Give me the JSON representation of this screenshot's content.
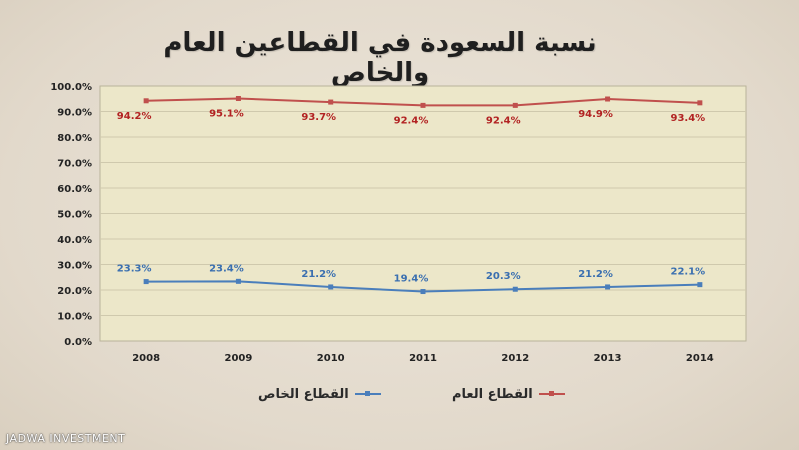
{
  "chart_data": {
    "type": "line",
    "title": "نسبة السعودة في القطاعين العام والخاص",
    "categories": [
      "2008",
      "2009",
      "2010",
      "2011",
      "2012",
      "2013",
      "2014"
    ],
    "ylim": [
      0,
      100
    ],
    "yticks": [
      "0.0%",
      "10.0%",
      "20.0%",
      "30.0%",
      "40.0%",
      "50.0%",
      "60.0%",
      "70.0%",
      "80.0%",
      "90.0%",
      "100.0%"
    ],
    "grid": true,
    "legend_position": "bottom",
    "series": [
      {
        "name": "القطاع العام",
        "color": "#c0504d",
        "values": [
          94.2,
          95.1,
          93.7,
          92.4,
          92.4,
          94.9,
          93.4
        ],
        "labels": [
          "94.2%",
          "95.1%",
          "93.7%",
          "92.4%",
          "92.4%",
          "94.9%",
          "93.4%"
        ],
        "label_position": "below"
      },
      {
        "name": "القطاع الخاص",
        "color": "#4a7ebb",
        "values": [
          23.3,
          23.4,
          21.2,
          19.4,
          20.3,
          21.2,
          22.1
        ],
        "labels": [
          "23.3%",
          "23.4%",
          "21.2%",
          "19.4%",
          "20.3%",
          "21.2%",
          "22.1%"
        ],
        "label_position": "above"
      }
    ]
  },
  "legend": {
    "public_label": "القطاع العام",
    "private_label": "القطاع الخاص",
    "public_color": "#c0504d",
    "private_color": "#4a7ebb"
  },
  "watermark": "JADWA INVESTMENT"
}
